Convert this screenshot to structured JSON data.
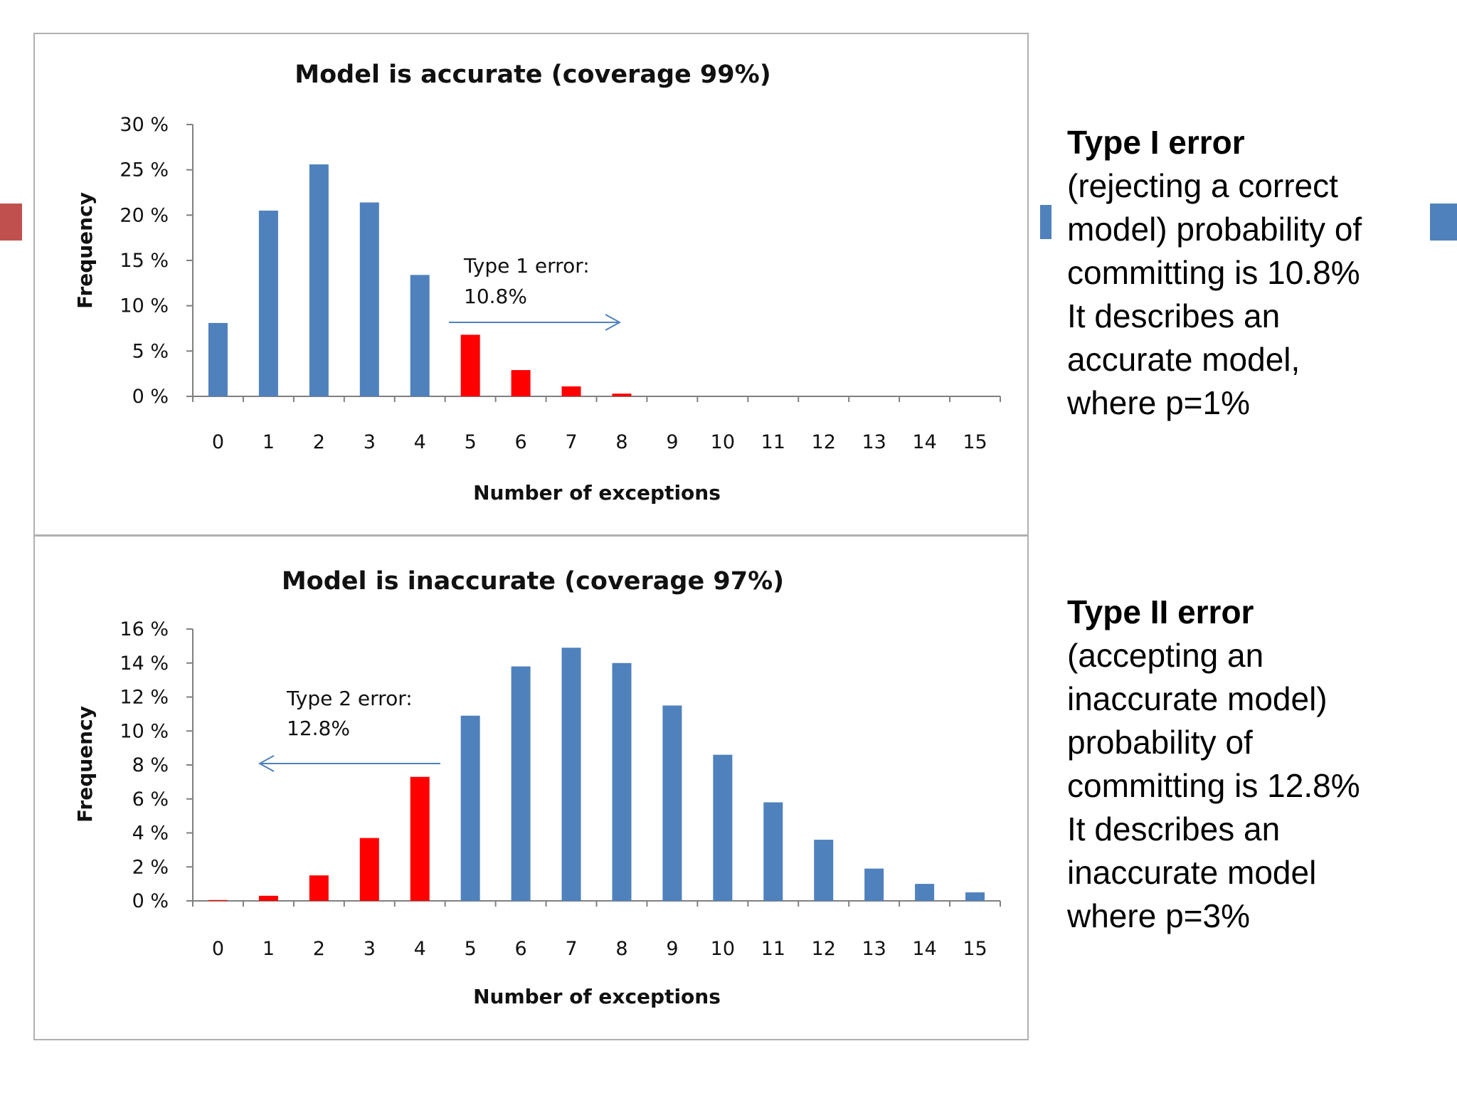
{
  "colors": {
    "blue": "#4f81bd",
    "red": "#ff0000",
    "axis": "#808080",
    "arrow": "#4f81bd",
    "deco_red": "#c0504d"
  },
  "chart_data": [
    {
      "type": "bar",
      "title": "Model is accurate (coverage 99%)",
      "xlabel": "Number of exceptions",
      "ylabel": "Frequency",
      "categories": [
        "0",
        "1",
        "2",
        "3",
        "4",
        "5",
        "6",
        "7",
        "8",
        "9",
        "10",
        "11",
        "12",
        "13",
        "14",
        "15"
      ],
      "values": [
        8.1,
        20.5,
        25.6,
        21.4,
        13.4,
        6.8,
        2.9,
        1.1,
        0.3,
        0,
        0,
        0,
        0,
        0,
        0,
        0
      ],
      "bar_colors": [
        "blue",
        "blue",
        "blue",
        "blue",
        "blue",
        "red",
        "red",
        "red",
        "red",
        "red",
        "red",
        "red",
        "red",
        "red",
        "red",
        "red"
      ],
      "ylim": [
        0,
        30
      ],
      "yticks": [
        0,
        5,
        10,
        15,
        20,
        25,
        30
      ],
      "ytick_labels": [
        "0 %",
        "5 %",
        "10 %",
        "15 %",
        "20 %",
        "25 %",
        "30 %"
      ],
      "annotation": {
        "lines": [
          "Type 1 error:",
          "10.8%"
        ],
        "direction": "right"
      }
    },
    {
      "type": "bar",
      "title": "Model is inaccurate (coverage 97%)",
      "xlabel": "Number of exceptions",
      "ylabel": "Frequency",
      "categories": [
        "0",
        "1",
        "2",
        "3",
        "4",
        "5",
        "6",
        "7",
        "8",
        "9",
        "10",
        "11",
        "12",
        "13",
        "14",
        "15"
      ],
      "values": [
        0.05,
        0.3,
        1.5,
        3.7,
        7.3,
        10.9,
        13.8,
        14.9,
        14.0,
        11.5,
        8.6,
        5.8,
        3.6,
        1.9,
        1.0,
        0.5
      ],
      "bar_colors": [
        "red",
        "red",
        "red",
        "red",
        "red",
        "blue",
        "blue",
        "blue",
        "blue",
        "blue",
        "blue",
        "blue",
        "blue",
        "blue",
        "blue",
        "blue"
      ],
      "ylim": [
        0,
        16
      ],
      "yticks": [
        0,
        2,
        4,
        6,
        8,
        10,
        12,
        14,
        16
      ],
      "ytick_labels": [
        "0 %",
        "2 %",
        "4 %",
        "6 %",
        "8 %",
        "10 %",
        "12 %",
        "14 %",
        "16 %"
      ],
      "annotation": {
        "lines": [
          "Type 2 error:",
          "12.8%"
        ],
        "direction": "left"
      }
    }
  ],
  "side": {
    "type1_head": "Type I error",
    "type1_body": "(rejecting a correct\nmodel) probability of\ncommitting is 10.8%\nIt describes an\naccurate model,\nwhere p=1%",
    "type2_head": "Type II error",
    "type2_body": "(accepting an\ninaccurate model)\nprobability of\ncommitting is 12.8%\nIt describes an\ninaccurate model\nwhere p=3%"
  }
}
